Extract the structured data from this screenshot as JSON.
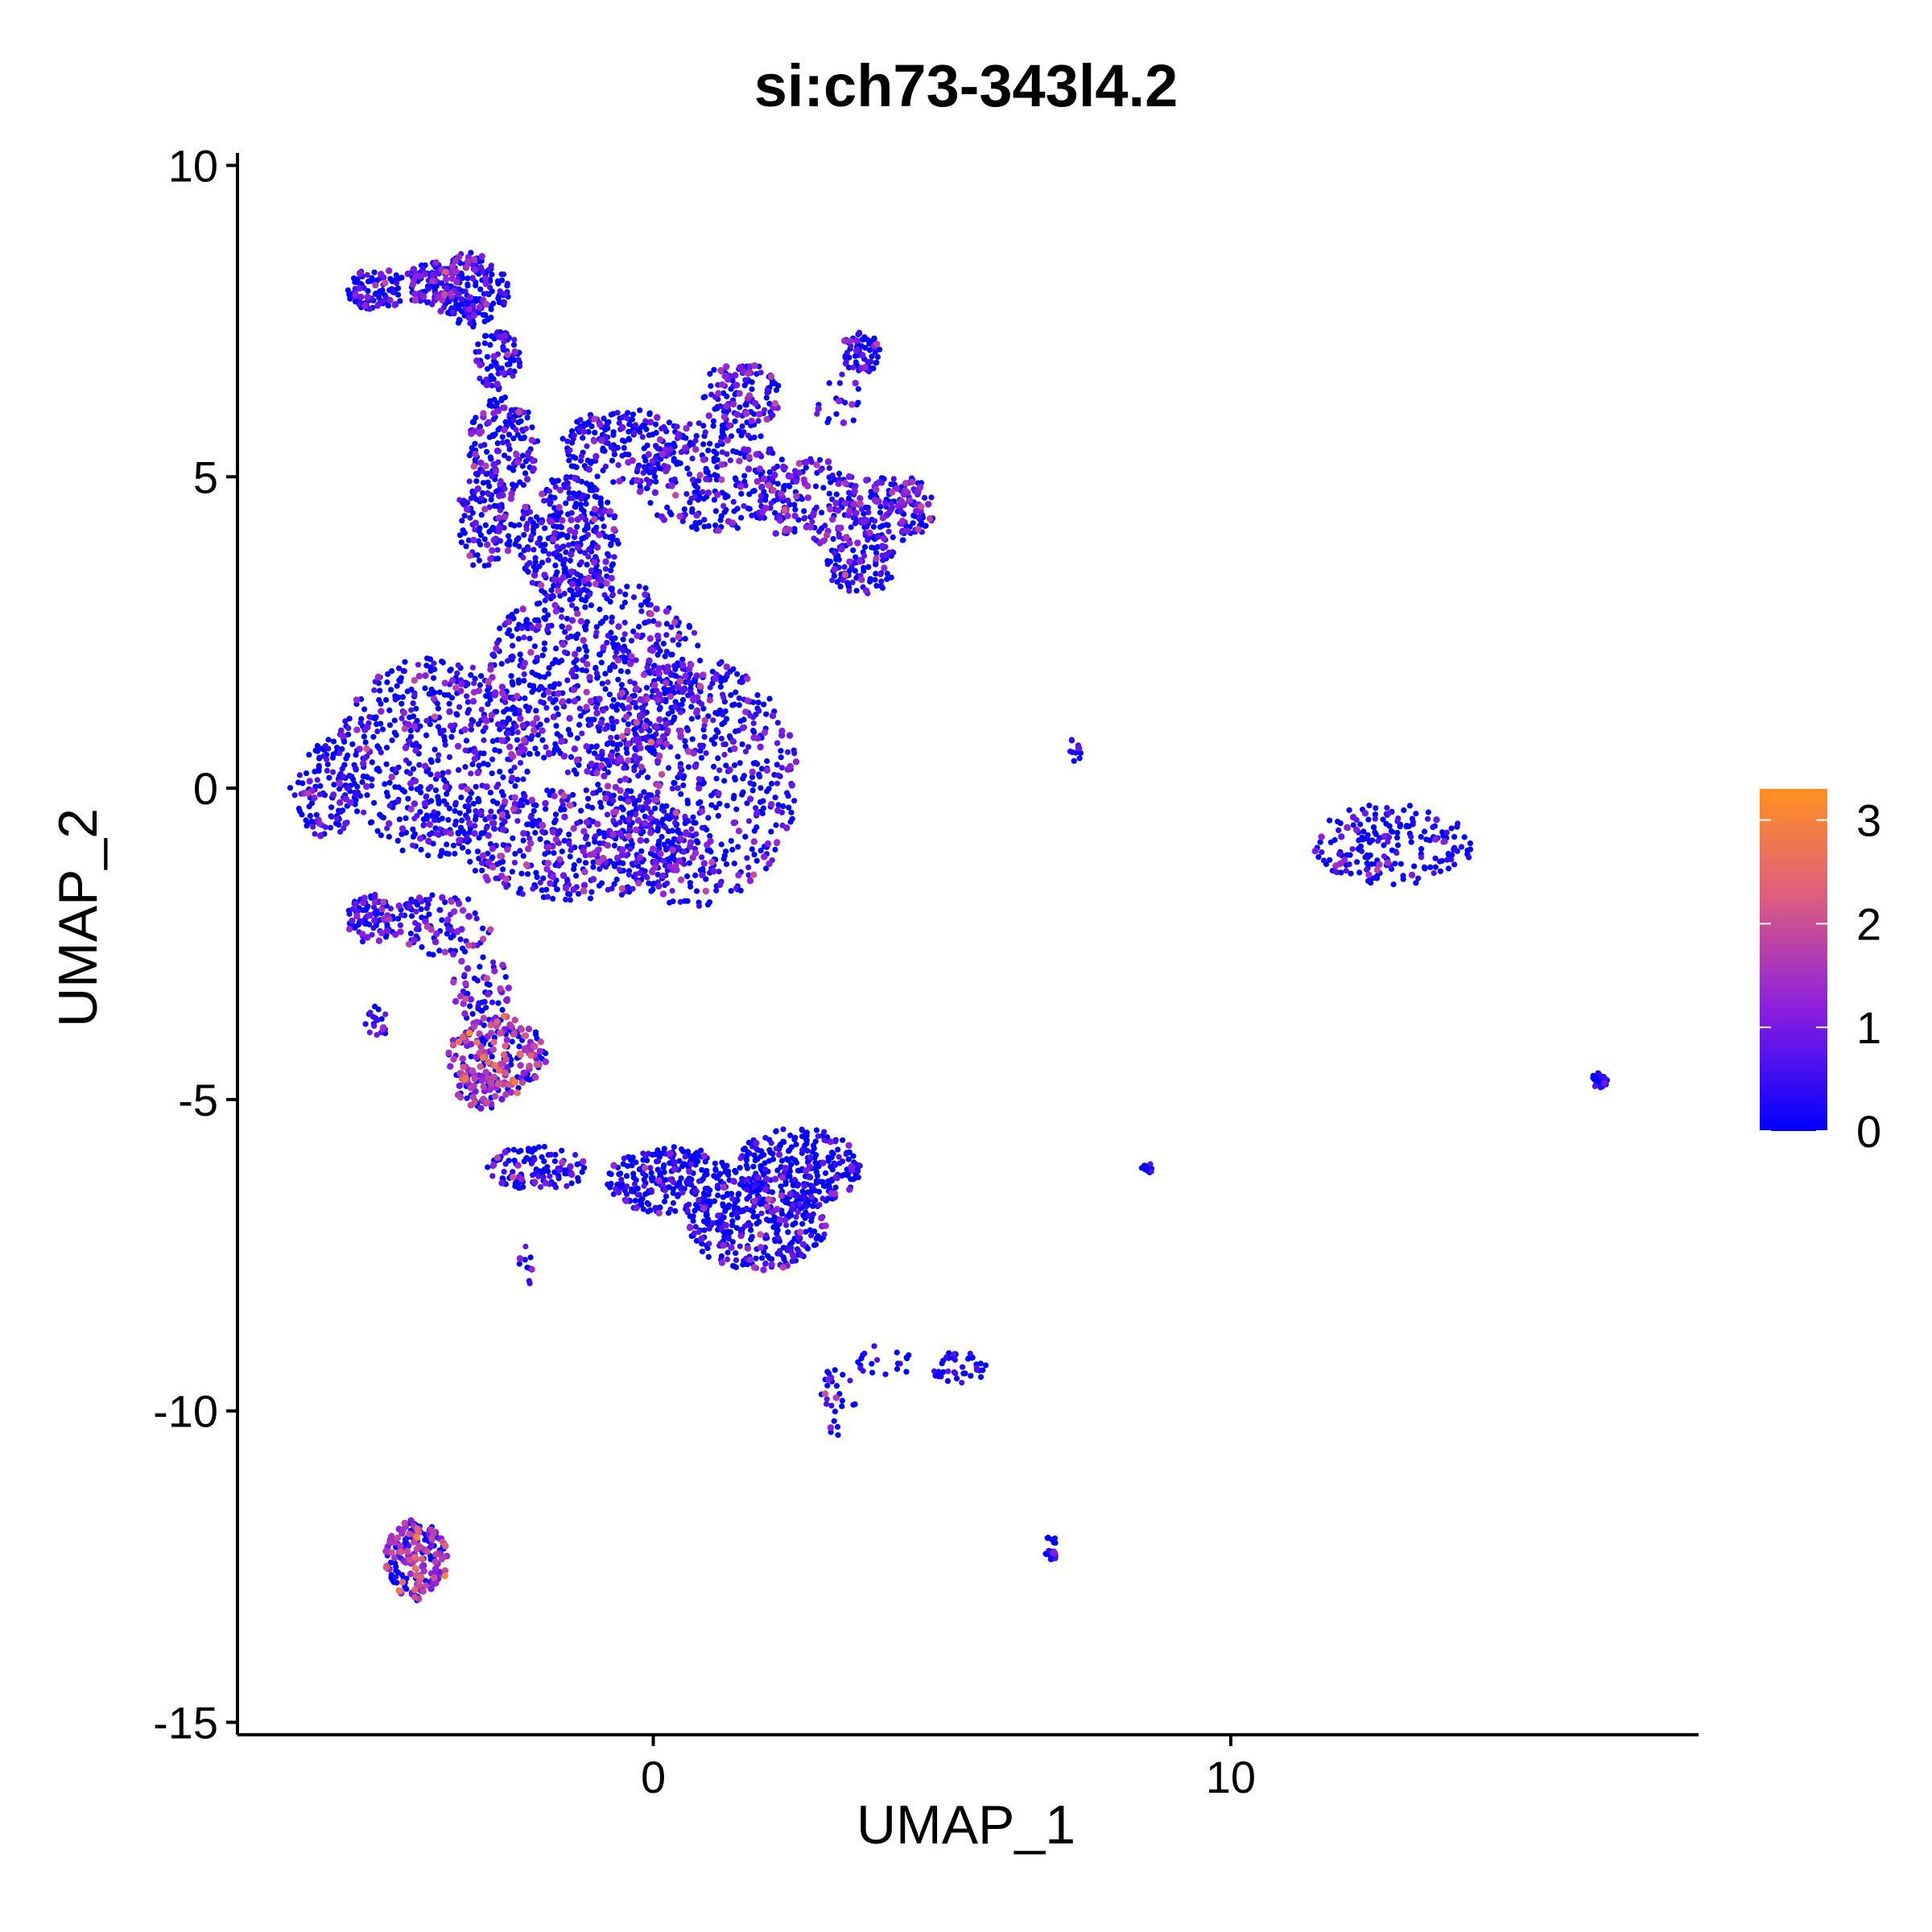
{
  "chart_data": {
    "type": "scatter",
    "title": "si:ch73-343l4.2",
    "xlabel": "UMAP_1",
    "ylabel": "UMAP_2",
    "xlim": [
      -7.2,
      18.1
    ],
    "ylim": [
      -15.2,
      10.2
    ],
    "xticks": [
      0,
      10
    ],
    "yticks": [
      -15,
      -10,
      -5,
      0,
      5,
      10
    ],
    "grid": false,
    "legend": {
      "type": "colorbar",
      "placement": "right",
      "range": [
        0,
        3.3
      ],
      "ticks": [
        0,
        1,
        2,
        3
      ],
      "colors": [
        "#0000ff",
        "#8a1ee0",
        "#e0607a",
        "#ff9020"
      ]
    },
    "clusters": [
      {
        "cx": -4.8,
        "cy": 8.0,
        "rx": 0.5,
        "ry": 0.35,
        "n": 90,
        "expr": 0.45
      },
      {
        "cx": -3.8,
        "cy": 8.1,
        "rx": 0.6,
        "ry": 0.35,
        "n": 90,
        "expr": 0.5
      },
      {
        "cx": -3.2,
        "cy": 8.0,
        "rx": 0.7,
        "ry": 0.6,
        "n": 200,
        "expr": 0.55
      },
      {
        "cx": -2.7,
        "cy": 6.9,
        "rx": 0.4,
        "ry": 0.5,
        "n": 80,
        "expr": 0.45
      },
      {
        "cx": -2.6,
        "cy": 5.5,
        "rx": 0.6,
        "ry": 0.8,
        "n": 160,
        "expr": 0.4
      },
      {
        "cx": -2.9,
        "cy": 4.3,
        "rx": 0.5,
        "ry": 0.8,
        "n": 120,
        "expr": 0.45
      },
      {
        "cx": -1.5,
        "cy": 4.0,
        "rx": 0.9,
        "ry": 1.0,
        "n": 320,
        "expr": 0.35
      },
      {
        "cx": -0.5,
        "cy": 5.5,
        "rx": 1.1,
        "ry": 0.6,
        "n": 200,
        "expr": 0.3
      },
      {
        "cx": 1.0,
        "cy": 5.0,
        "rx": 1.3,
        "ry": 0.9,
        "n": 260,
        "expr": 0.45
      },
      {
        "cx": 1.5,
        "cy": 6.3,
        "rx": 0.7,
        "ry": 0.55,
        "n": 130,
        "expr": 0.6
      },
      {
        "cx": 2.7,
        "cy": 4.6,
        "rx": 0.9,
        "ry": 0.7,
        "n": 160,
        "expr": 0.7
      },
      {
        "cx": 3.6,
        "cy": 7.0,
        "rx": 0.35,
        "ry": 0.35,
        "n": 70,
        "expr": 0.5
      },
      {
        "cx": 3.2,
        "cy": 6.2,
        "rx": 0.4,
        "ry": 0.5,
        "n": 20,
        "expr": 0.4
      },
      {
        "cx": 3.6,
        "cy": 3.6,
        "rx": 0.6,
        "ry": 0.5,
        "n": 110,
        "expr": 0.6
      },
      {
        "cx": 4.1,
        "cy": 4.5,
        "rx": 0.8,
        "ry": 0.55,
        "n": 170,
        "expr": 0.75
      },
      {
        "cx": -3.8,
        "cy": 0.5,
        "rx": 1.7,
        "ry": 1.6,
        "n": 550,
        "expr": 0.45
      },
      {
        "cx": -1.0,
        "cy": 1.8,
        "rx": 1.9,
        "ry": 1.6,
        "n": 650,
        "expr": 0.45
      },
      {
        "cx": 0.7,
        "cy": 0.1,
        "rx": 1.8,
        "ry": 2.0,
        "n": 650,
        "expr": 0.5
      },
      {
        "cx": -1.3,
        "cy": -0.9,
        "rx": 2.1,
        "ry": 0.9,
        "n": 450,
        "expr": 0.55
      },
      {
        "cx": -5.7,
        "cy": 0.0,
        "rx": 0.6,
        "ry": 0.8,
        "n": 120,
        "expr": 0.35
      },
      {
        "cx": -4.9,
        "cy": -2.1,
        "rx": 0.4,
        "ry": 0.4,
        "n": 80,
        "expr": 0.7
      },
      {
        "cx": -3.7,
        "cy": -2.2,
        "rx": 0.9,
        "ry": 0.5,
        "n": 110,
        "expr": 0.6
      },
      {
        "cx": -3.0,
        "cy": -3.2,
        "rx": 0.5,
        "ry": 0.6,
        "n": 60,
        "expr": 0.9
      },
      {
        "cx": -2.7,
        "cy": -4.3,
        "rx": 0.85,
        "ry": 0.65,
        "n": 210,
        "expr": 1.6
      },
      {
        "cx": -3.0,
        "cy": -4.9,
        "rx": 0.4,
        "ry": 0.3,
        "n": 40,
        "expr": 1.2
      },
      {
        "cx": -2.0,
        "cy": -6.1,
        "rx": 0.9,
        "ry": 0.35,
        "n": 120,
        "expr": 0.25
      },
      {
        "cx": 0.3,
        "cy": -6.3,
        "rx": 1.1,
        "ry": 0.55,
        "n": 250,
        "expr": 0.1
      },
      {
        "cx": 1.8,
        "cy": -7.0,
        "rx": 1.2,
        "ry": 0.75,
        "n": 350,
        "expr": 0.25
      },
      {
        "cx": 2.5,
        "cy": -6.1,
        "rx": 1.1,
        "ry": 0.65,
        "n": 280,
        "expr": 0.1
      },
      {
        "cx": -4.8,
        "cy": -3.8,
        "rx": 0.2,
        "ry": 0.3,
        "n": 20,
        "expr": 0.3
      },
      {
        "cx": -2.2,
        "cy": -7.7,
        "rx": 0.12,
        "ry": 0.35,
        "n": 10,
        "expr": 0.6
      },
      {
        "cx": 12.8,
        "cy": -0.9,
        "rx": 1.4,
        "ry": 0.65,
        "n": 200,
        "expr": 0.2
      },
      {
        "cx": 7.3,
        "cy": 0.6,
        "rx": 0.12,
        "ry": 0.2,
        "n": 12,
        "expr": 0.1
      },
      {
        "cx": 8.6,
        "cy": -6.1,
        "rx": 0.18,
        "ry": 0.08,
        "n": 12,
        "expr": 0.1
      },
      {
        "cx": 16.4,
        "cy": -4.7,
        "rx": 0.15,
        "ry": 0.15,
        "n": 35,
        "expr": 0.05
      },
      {
        "cx": 6.9,
        "cy": -12.2,
        "rx": 0.12,
        "ry": 0.2,
        "n": 20,
        "expr": 0.1
      },
      {
        "cx": 3.2,
        "cy": -9.8,
        "rx": 0.3,
        "ry": 0.6,
        "n": 30,
        "expr": 0.4
      },
      {
        "cx": 4.0,
        "cy": -9.2,
        "rx": 0.5,
        "ry": 0.3,
        "n": 20,
        "expr": 0.15
      },
      {
        "cx": 5.3,
        "cy": -9.3,
        "rx": 0.5,
        "ry": 0.25,
        "n": 40,
        "expr": 0.1
      },
      {
        "cx": -4.1,
        "cy": -12.4,
        "rx": 0.55,
        "ry": 0.65,
        "n": 200,
        "expr": 1.3
      }
    ]
  }
}
